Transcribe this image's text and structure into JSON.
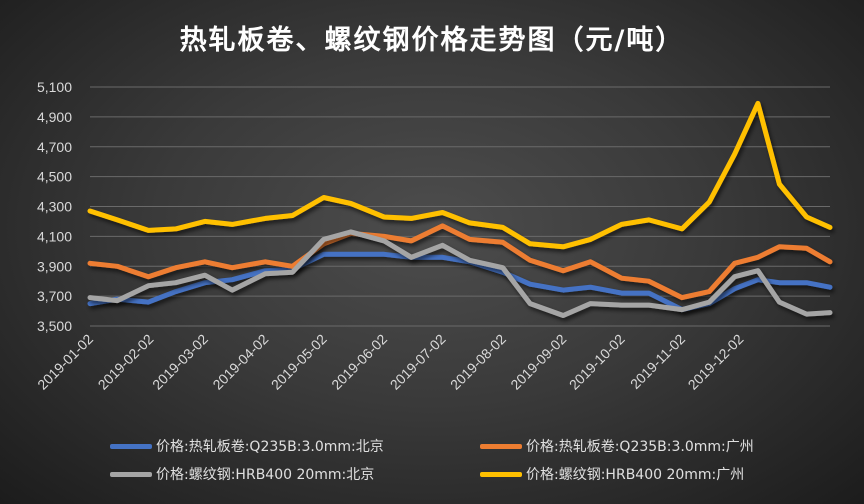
{
  "chart_data": {
    "type": "line",
    "title": "热轧板卷、螺纹钢价格走势图（元/吨）",
    "xlabel": "",
    "ylabel": "",
    "ylim": [
      3500,
      5100
    ],
    "yticks": [
      "3,500",
      "3,700",
      "3,900",
      "4,100",
      "4,300",
      "4,500",
      "4,700",
      "4,900",
      "5,100"
    ],
    "ytick_values": [
      3500,
      3700,
      3900,
      4100,
      4300,
      4500,
      4700,
      4900,
      5100
    ],
    "xtick_labels": [
      "2019-01-02",
      "2019-02-02",
      "2019-03-02",
      "2019-04-02",
      "2019-05-02",
      "2019-06-02",
      "2019-07-02",
      "2019-08-02",
      "2019-09-02",
      "2019-10-02",
      "2019-11-02",
      "2019-12-02"
    ],
    "xtick_days": [
      0,
      31,
      59,
      90,
      120,
      151,
      181,
      212,
      243,
      273,
      304,
      334
    ],
    "x_days": [
      0,
      14,
      30,
      44,
      59,
      73,
      90,
      104,
      120,
      134,
      151,
      165,
      181,
      195,
      212,
      226,
      243,
      257,
      273,
      287,
      304,
      318,
      331,
      343,
      354,
      368,
      380
    ],
    "grid": true,
    "legend_position": "bottom",
    "series": [
      {
        "name": "价格:热轧板卷:Q235B:3.0mm:北京",
        "color": "#4472c4",
        "values": [
          3650,
          3680,
          3660,
          3730,
          3790,
          3810,
          3870,
          3880,
          3980,
          3980,
          3980,
          3960,
          3960,
          3930,
          3860,
          3780,
          3740,
          3760,
          3720,
          3720,
          3610,
          3650,
          3750,
          3810,
          3790,
          3790,
          3760
        ]
      },
      {
        "name": "价格:热轧板卷:Q235B:3.0mm:广州",
        "color": "#ed7d31",
        "values": [
          3920,
          3900,
          3830,
          3890,
          3930,
          3890,
          3930,
          3900,
          4050,
          4120,
          4100,
          4070,
          4170,
          4080,
          4060,
          3940,
          3870,
          3930,
          3820,
          3800,
          3690,
          3730,
          3920,
          3960,
          4030,
          4020,
          3930
        ]
      },
      {
        "name": "价格:螺纹钢:HRB400 20mm:北京",
        "color": "#a5a5a5",
        "values": [
          3690,
          3670,
          3770,
          3790,
          3840,
          3740,
          3850,
          3860,
          4080,
          4130,
          4070,
          3960,
          4040,
          3940,
          3890,
          3650,
          3570,
          3650,
          3640,
          3640,
          3610,
          3660,
          3830,
          3870,
          3660,
          3580,
          3590
        ]
      },
      {
        "name": "价格:螺纹钢:HRB400 20mm:广州",
        "color": "#ffc000",
        "values": [
          4270,
          4210,
          4140,
          4150,
          4200,
          4180,
          4220,
          4240,
          4360,
          4320,
          4230,
          4220,
          4260,
          4190,
          4160,
          4050,
          4030,
          4080,
          4180,
          4210,
          4150,
          4330,
          4650,
          4990,
          4450,
          4230,
          4160
        ]
      }
    ]
  }
}
